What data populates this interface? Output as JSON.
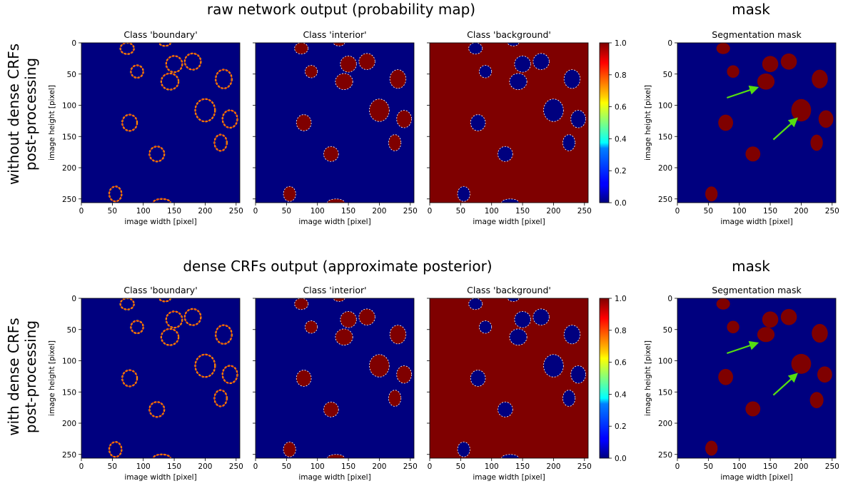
{
  "figure": {
    "rows": [
      {
        "row_label_lines": [
          "without dense CRFs",
          "post-processing"
        ],
        "prob_title": "raw network output (probability map)",
        "mask_title": "mask"
      },
      {
        "row_label_lines": [
          "with dense CRFs",
          "post-processing"
        ],
        "prob_title": "dense CRFs output (approximate posterior)",
        "mask_title": "mask"
      }
    ],
    "panel_titles": [
      "Class 'boundary'",
      "Class 'interior'",
      "Class 'background'"
    ],
    "mask_panel_title": "Segmentation mask",
    "xlabel": "image width [pixel]",
    "ylabel": "image height [pixel]",
    "x_ticks": [
      "0",
      "50",
      "100",
      "150",
      "200",
      "250"
    ],
    "y_ticks": [
      "0",
      "50",
      "100",
      "150",
      "200",
      "250"
    ],
    "colorbar_ticks": [
      "0.0",
      "0.2",
      "0.4",
      "0.6",
      "0.8",
      "1.0"
    ]
  },
  "colors": {
    "low": "#00007f",
    "high": "#7f0000",
    "edge": "#ffd200",
    "arrow": "#55dd11"
  },
  "chart_data": {
    "type": "heatmap",
    "image_size": [
      256,
      256
    ],
    "axis_range": {
      "x": [
        0,
        256
      ],
      "y": [
        256,
        0
      ]
    },
    "colormap": "jet",
    "colorbar_range": [
      0.0,
      1.0
    ],
    "nuclei": [
      {
        "x": 74,
        "y": 9,
        "rx": 11,
        "ry": 9
      },
      {
        "x": 135,
        "y": 0,
        "rx": 9,
        "ry": 5
      },
      {
        "x": 150,
        "y": 34,
        "rx": 13,
        "ry": 13
      },
      {
        "x": 180,
        "y": 30,
        "rx": 13,
        "ry": 13
      },
      {
        "x": 90,
        "y": 46,
        "rx": 10,
        "ry": 10
      },
      {
        "x": 143,
        "y": 62,
        "rx": 14,
        "ry": 13
      },
      {
        "x": 230,
        "y": 58,
        "rx": 13,
        "ry": 15
      },
      {
        "x": 200,
        "y": 108,
        "rx": 16,
        "ry": 18
      },
      {
        "x": 240,
        "y": 122,
        "rx": 12,
        "ry": 14
      },
      {
        "x": 78,
        "y": 128,
        "rx": 12,
        "ry": 13
      },
      {
        "x": 225,
        "y": 160,
        "rx": 10,
        "ry": 13
      },
      {
        "x": 122,
        "y": 178,
        "rx": 12,
        "ry": 12
      },
      {
        "x": 55,
        "y": 242,
        "rx": 10,
        "ry": 12
      },
      {
        "x": 130,
        "y": 256,
        "rx": 14,
        "ry": 6
      }
    ],
    "mask_nuclei_raw": [
      {
        "x": 74,
        "y": 9,
        "rx": 11,
        "ry": 9
      },
      {
        "x": 150,
        "y": 34,
        "rx": 13,
        "ry": 13
      },
      {
        "x": 180,
        "y": 30,
        "rx": 13,
        "ry": 13
      },
      {
        "x": 90,
        "y": 46,
        "rx": 10,
        "ry": 10
      },
      {
        "x": 143,
        "y": 62,
        "rx": 14,
        "ry": 13
      },
      {
        "x": 230,
        "y": 58,
        "rx": 13,
        "ry": 15
      },
      {
        "x": 200,
        "y": 108,
        "rx": 16,
        "ry": 18
      },
      {
        "x": 240,
        "y": 122,
        "rx": 12,
        "ry": 14
      },
      {
        "x": 78,
        "y": 128,
        "rx": 12,
        "ry": 13
      },
      {
        "x": 225,
        "y": 160,
        "rx": 10,
        "ry": 13
      },
      {
        "x": 122,
        "y": 178,
        "rx": 12,
        "ry": 12
      },
      {
        "x": 55,
        "y": 242,
        "rx": 10,
        "ry": 12
      }
    ],
    "mask_nuclei_crf": [
      {
        "x": 74,
        "y": 9,
        "rx": 11,
        "ry": 9
      },
      {
        "x": 150,
        "y": 34,
        "rx": 13,
        "ry": 13
      },
      {
        "x": 180,
        "y": 30,
        "rx": 13,
        "ry": 13
      },
      {
        "x": 90,
        "y": 46,
        "rx": 10,
        "ry": 10
      },
      {
        "x": 143,
        "y": 58,
        "rx": 14,
        "ry": 12
      },
      {
        "x": 230,
        "y": 56,
        "rx": 13,
        "ry": 15
      },
      {
        "x": 200,
        "y": 105,
        "rx": 16,
        "ry": 16
      },
      {
        "x": 238,
        "y": 122,
        "rx": 12,
        "ry": 13
      },
      {
        "x": 78,
        "y": 126,
        "rx": 12,
        "ry": 13
      },
      {
        "x": 225,
        "y": 163,
        "rx": 11,
        "ry": 13
      },
      {
        "x": 122,
        "y": 177,
        "rx": 12,
        "ry": 12
      },
      {
        "x": 55,
        "y": 240,
        "rx": 10,
        "ry": 12
      }
    ],
    "arrows": [
      {
        "from": [
          80,
          88
        ],
        "to": [
          128,
          72
        ]
      },
      {
        "from": [
          155,
          155
        ],
        "to": [
          192,
          122
        ]
      }
    ]
  }
}
